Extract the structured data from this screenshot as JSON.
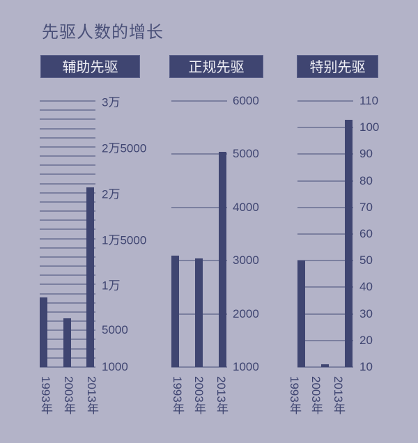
{
  "title": "先驱人数的增长",
  "colors": {
    "background": "#b3b3c8",
    "bar": "#3f4571",
    "grid": "#7b7f9f",
    "text": "#3f4571"
  },
  "chart_data": [
    {
      "type": "bar",
      "title": "辅助先驱",
      "categories": [
        "1993年",
        "2003年",
        "2013年"
      ],
      "values": [
        8600,
        6300,
        20600
      ],
      "ylim": [
        1000,
        30000
      ],
      "yticks": [
        1000,
        5000,
        10000,
        15000,
        20000,
        25000,
        30000
      ],
      "ytick_labels": [
        "1000",
        "5000",
        "1万",
        "1万5000",
        "2万",
        "2万5000",
        "3万"
      ],
      "grid_step": 1000,
      "grid": true,
      "xlabel": "",
      "ylabel": ""
    },
    {
      "type": "bar",
      "title": "正规先驱",
      "categories": [
        "1993年",
        "2003年",
        "2013年"
      ],
      "values": [
        3100,
        3040,
        5040
      ],
      "ylim": [
        1000,
        6000
      ],
      "yticks": [
        1000,
        2000,
        3000,
        4000,
        5000,
        6000
      ],
      "ytick_labels": [
        "1000",
        "2000",
        "3000",
        "4000",
        "5000",
        "6000"
      ],
      "grid_step": 1000,
      "grid": true,
      "xlabel": "",
      "ylabel": ""
    },
    {
      "type": "bar",
      "title": "特别先驱",
      "categories": [
        "1993年",
        "2003年",
        "2013年"
      ],
      "values": [
        50,
        11,
        103
      ],
      "ylim": [
        10,
        110
      ],
      "yticks": [
        10,
        20,
        30,
        40,
        50,
        60,
        70,
        80,
        90,
        100,
        110
      ],
      "ytick_labels": [
        "10",
        "20",
        "30",
        "40",
        "50",
        "60",
        "70",
        "80",
        "90",
        "100",
        "110"
      ],
      "grid_step": 10,
      "grid": true,
      "xlabel": "",
      "ylabel": ""
    }
  ]
}
